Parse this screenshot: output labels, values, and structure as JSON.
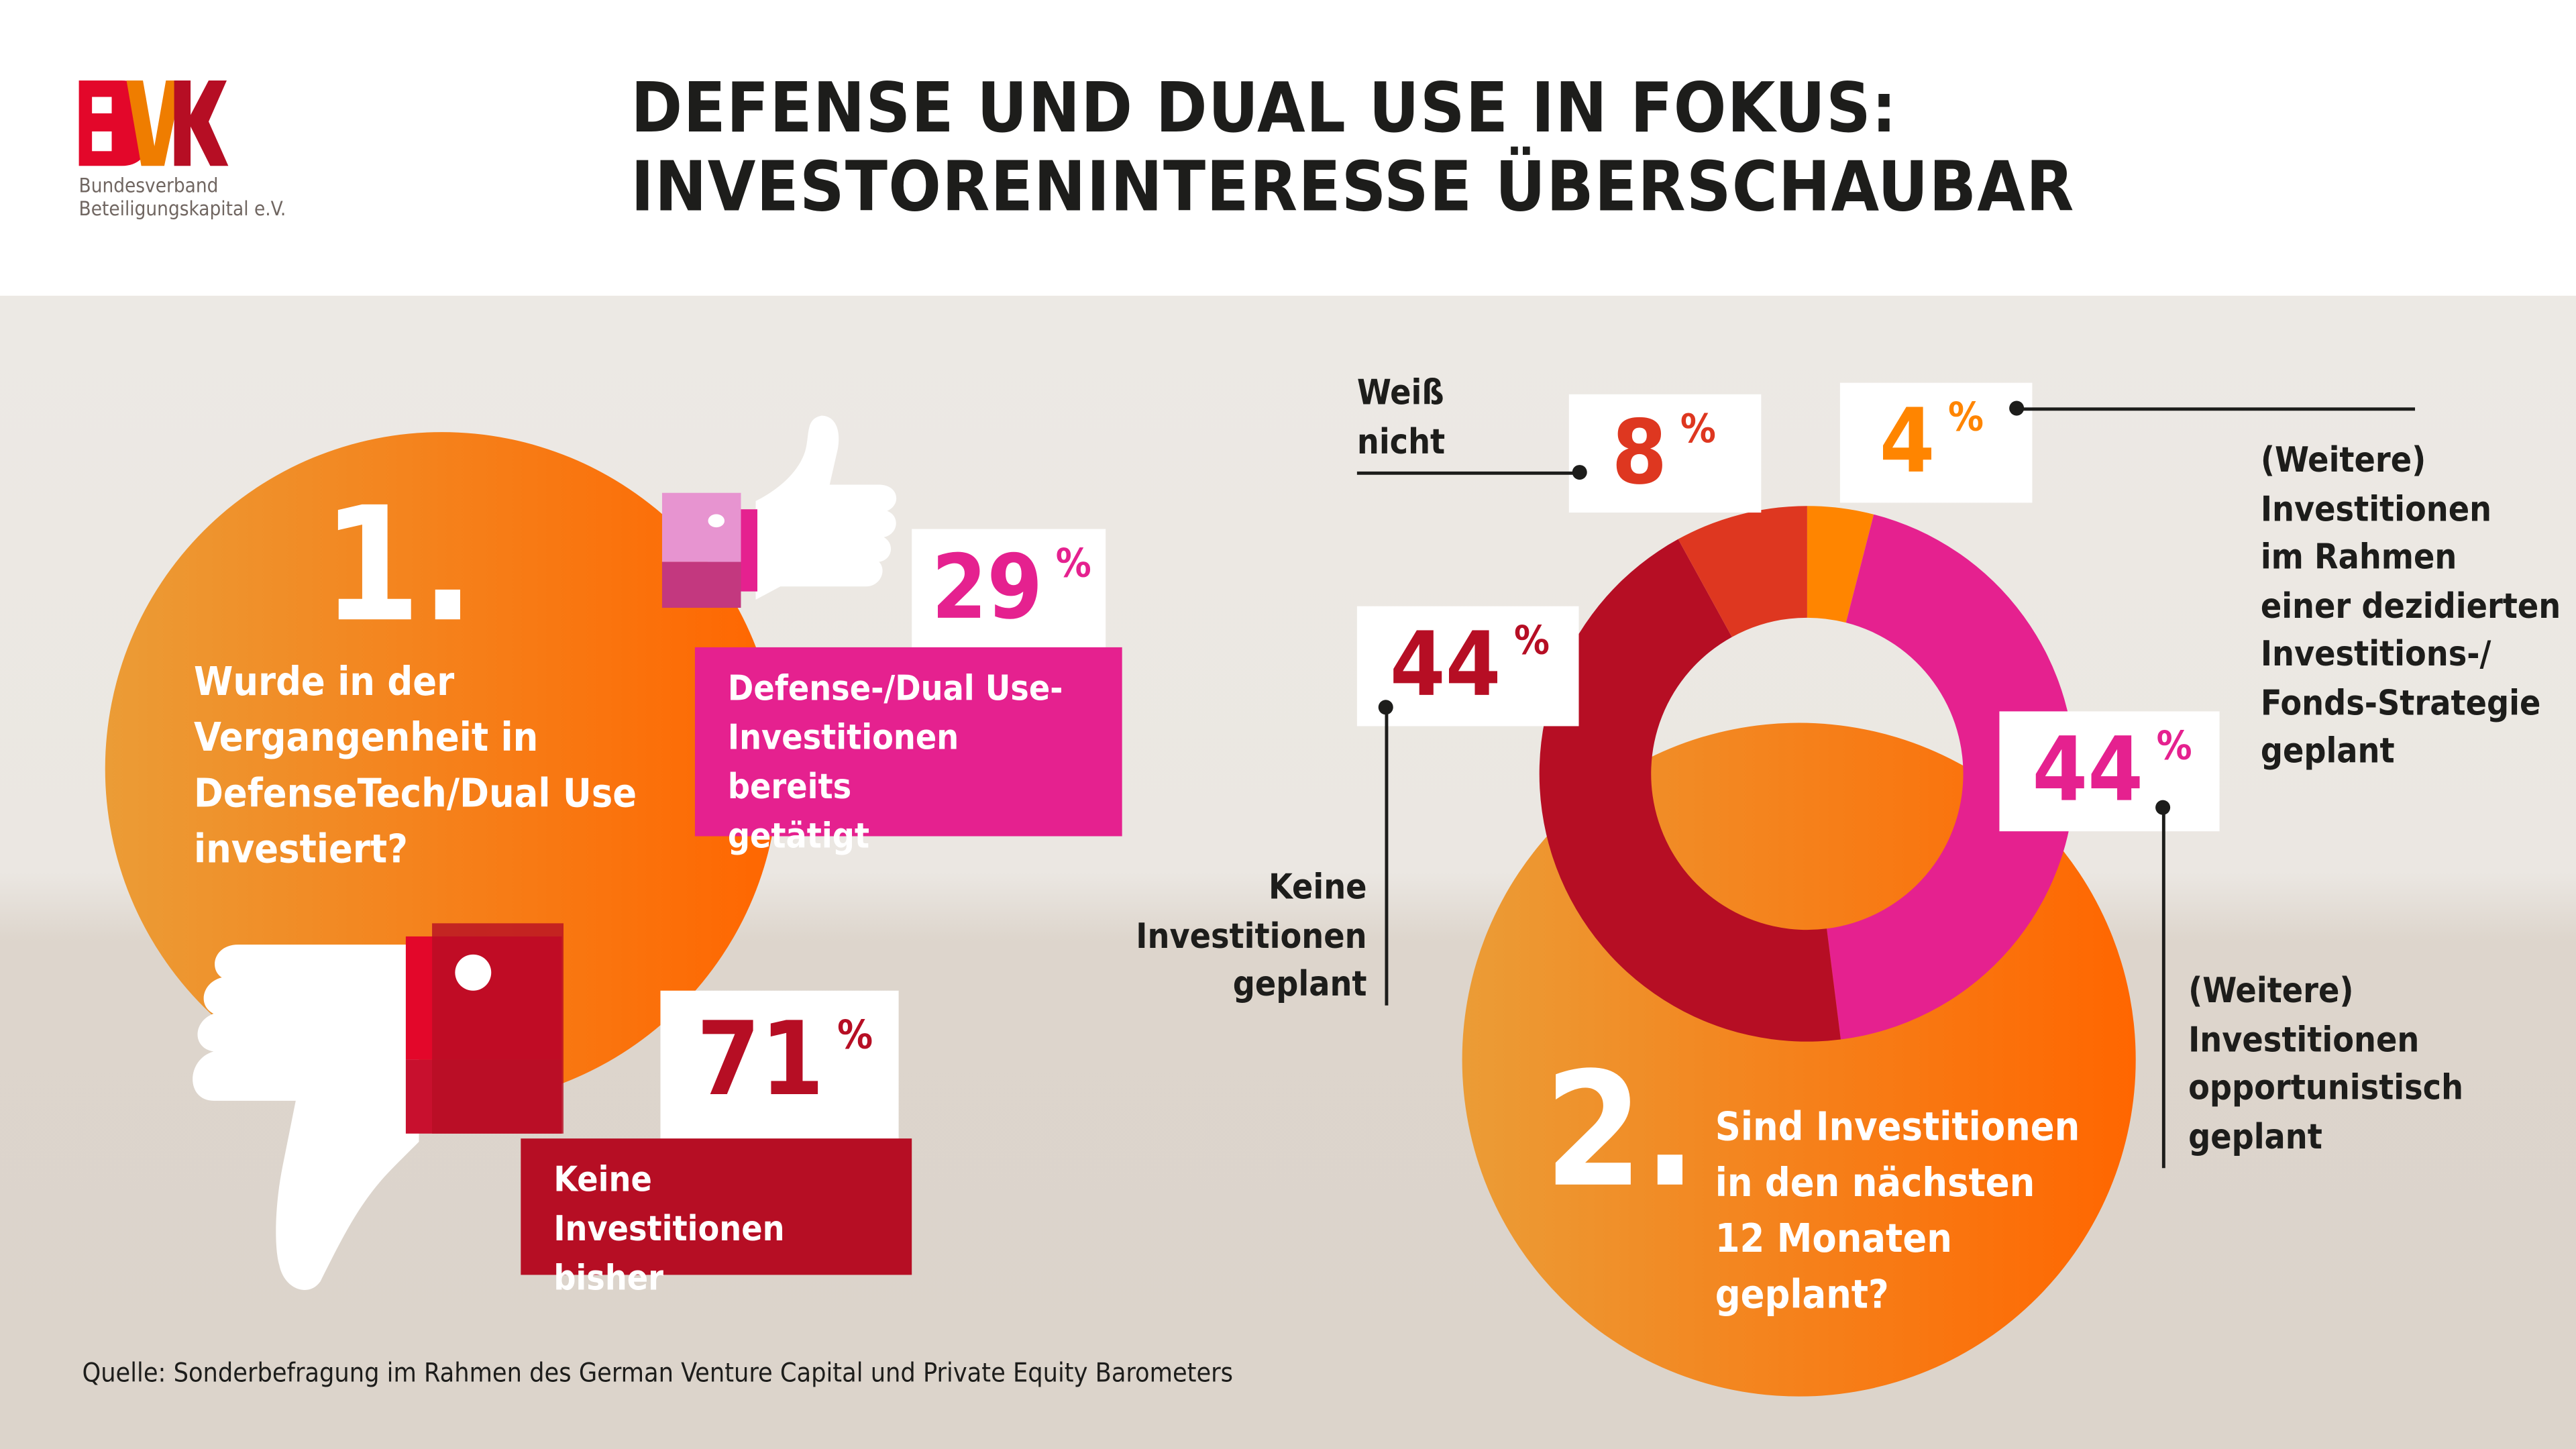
{
  "header": {
    "logo_text": "BVK",
    "org_line1": "Bundesverband",
    "org_line2": "Beteiligungskapital e.V.",
    "title_line1": "DEFENSE UND DUAL USE IN FOKUS:",
    "title_line2": "INVESTORENINTERESSE ÜBERSCHAUBAR"
  },
  "colors": {
    "orange": "#ff6600",
    "pink": "#e5218f",
    "darkred": "#b60e24",
    "red": "#de3720",
    "amber": "#ff8500"
  },
  "chart_data": [
    {
      "type": "pie",
      "title": "1. Wurde in der Vergangenheit in DefenseTech/Dual Use investiert?",
      "slices": [
        {
          "label": "Defense-/Dual Use-Investitionen bereits getätigt",
          "value": 29
        },
        {
          "label": "Keine Investitionen bisher",
          "value": 71
        }
      ]
    },
    {
      "type": "pie",
      "title": "2. Sind Investitionen in den nächsten 12 Monaten geplant?",
      "slices": [
        {
          "label": "(Weitere) Investitionen im Rahmen einer dezidierten Investitions-/Fonds-Strategie geplant",
          "value": 4,
          "color": "#ff8500"
        },
        {
          "label": "(Weitere) Investitionen opportunistisch geplant",
          "value": 44,
          "color": "#e5218f"
        },
        {
          "label": "Keine Investitionen geplant",
          "value": 44,
          "color": "#b60e24"
        },
        {
          "label": "Weiß nicht",
          "value": 8,
          "color": "#de3720"
        }
      ]
    }
  ],
  "q1": {
    "number": "1.",
    "line1": "Wurde in der",
    "line2": "Vergangenheit in",
    "line3": "DefenseTech/Dual Use",
    "line4": "investiert?",
    "yes_value": "29",
    "yes_label1": "Defense-/Dual Use-",
    "yes_label2": "Investitionen bereits",
    "yes_label3": "getätigt",
    "no_value": "71",
    "no_label1": "Keine Investitionen",
    "no_label2": "bisher"
  },
  "q2": {
    "number": "2.",
    "line1": "Sind Investitionen",
    "line2": "in den nächsten",
    "line3": "12 Monaten",
    "line4": "geplant?",
    "weiss_value": "8",
    "weiss_label1": "Weiß",
    "weiss_label2": "nicht",
    "strat_value": "4",
    "strat_label": [
      "(Weitere)",
      "Investitionen",
      "im Rahmen",
      "einer dezidierten",
      "Investitions-/",
      "Fonds-Strategie",
      "geplant"
    ],
    "keine_value": "44",
    "keine_label1": "Keine",
    "keine_label2": "Investitionen",
    "keine_label3": "geplant",
    "opp_value": "44",
    "opp_label": [
      "(Weitere)",
      "Investitionen",
      "opportunistisch",
      "geplant"
    ]
  },
  "percent": "%",
  "source": "Quelle: Sonderbefragung im Rahmen des German Venture Capital und Private Equity Barometers"
}
